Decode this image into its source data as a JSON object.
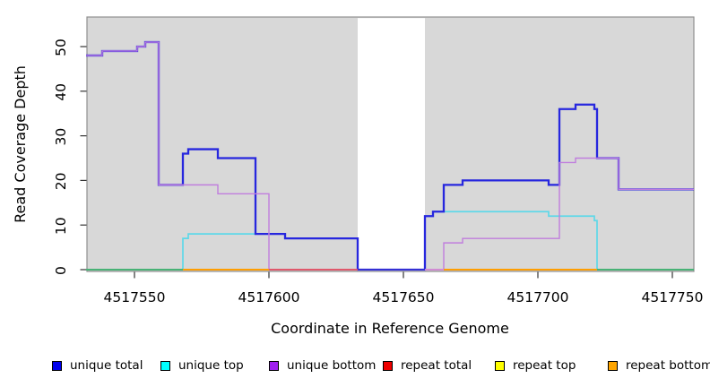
{
  "chart_data": {
    "type": "line",
    "subtype": "step-coverage-plot",
    "title": "",
    "xlabel": "Coordinate in Reference Genome",
    "ylabel": "Read Coverage Depth",
    "xlim": [
      4517532,
      4517758
    ],
    "ylim": [
      0,
      56
    ],
    "x_ticks": [
      "4517550",
      "4517600",
      "4517650",
      "4517700",
      "4517750"
    ],
    "x_tick_values": [
      4517550,
      4517600,
      4517650,
      4517700,
      4517750
    ],
    "y_ticks": [
      "0",
      "10",
      "20",
      "30",
      "40",
      "50"
    ],
    "y_tick_values": [
      0,
      10,
      20,
      30,
      40,
      50
    ],
    "grid": "off",
    "plot_background": "#d8d8d8",
    "plot_border": "#8f8f8f",
    "gap_band": {
      "from": 4517633,
      "to": 4517658,
      "fill": "#ffffff"
    },
    "series": [
      {
        "name": "repeat total",
        "line_color": "#e0506a",
        "width": 1.5,
        "steps": [
          [
            4517532,
            0
          ]
        ],
        "end": 4517758
      },
      {
        "name": "repeat top",
        "line_color": "#ffff00",
        "width": 1.5,
        "steps": [
          [
            4517532,
            0
          ]
        ],
        "end": 4517758
      },
      {
        "name": "repeat bottom",
        "line_color": "#ff9d00",
        "width": 1.8,
        "steps": [
          [
            4517532,
            0
          ]
        ],
        "end": 4517758
      },
      {
        "name": "unique top",
        "line_color": "#5ed8e8",
        "width": 1.7,
        "steps": [
          [
            4517532,
            0
          ],
          [
            4517568,
            7
          ],
          [
            4517570,
            8
          ],
          [
            4517606,
            7
          ],
          [
            4517633,
            0
          ],
          [
            4517658,
            12
          ],
          [
            4517661,
            13
          ],
          [
            4517704,
            12
          ],
          [
            4517721,
            11
          ],
          [
            4517722,
            0
          ]
        ],
        "end": 4517758
      },
      {
        "name": "unique total",
        "line_color": "#2727de",
        "width": 2.3,
        "steps": [
          [
            4517532,
            48
          ],
          [
            4517538,
            49
          ],
          [
            4517551,
            50
          ],
          [
            4517554,
            51
          ],
          [
            4517559,
            19
          ],
          [
            4517568,
            26
          ],
          [
            4517570,
            27
          ],
          [
            4517581,
            25
          ],
          [
            4517595,
            8
          ],
          [
            4517606,
            7
          ],
          [
            4517633,
            0
          ],
          [
            4517658,
            12
          ],
          [
            4517661,
            13
          ],
          [
            4517665,
            19
          ],
          [
            4517672,
            20
          ],
          [
            4517704,
            19
          ],
          [
            4517708,
            36
          ],
          [
            4517714,
            37
          ],
          [
            4517721,
            36
          ],
          [
            4517722,
            25
          ],
          [
            4517730,
            18
          ]
        ],
        "end": 4517758
      },
      {
        "name": "unique bottom",
        "line_color": "#c07edd",
        "width": 1.4,
        "steps": [
          [
            4517532,
            48
          ],
          [
            4517538,
            49
          ],
          [
            4517551,
            50
          ],
          [
            4517554,
            51
          ],
          [
            4517559,
            19
          ],
          [
            4517581,
            17
          ],
          [
            4517600,
            0
          ],
          [
            4517665,
            6
          ],
          [
            4517672,
            7
          ],
          [
            4517708,
            24
          ],
          [
            4517714,
            25
          ],
          [
            4517730,
            18
          ]
        ],
        "end": 4517758
      }
    ],
    "zero_line_segments": [
      {
        "from": 4517532,
        "to": 4517568,
        "color": "#3fae6e"
      },
      {
        "from": 4517568,
        "to": 4517600,
        "color": "#ff9d00"
      },
      {
        "from": 4517600,
        "to": 4517633,
        "color": "#e0506a"
      },
      {
        "from": 4517633,
        "to": 4517658,
        "color": "#2b2bd2"
      },
      {
        "from": 4517658,
        "to": 4517665,
        "color": "#cf8ae0"
      },
      {
        "from": 4517665,
        "to": 4517722,
        "color": "#ff9d00"
      },
      {
        "from": 4517722,
        "to": 4517758,
        "color": "#3fae6e"
      }
    ],
    "legend_position": "bottom",
    "legend": [
      {
        "label": "unique total",
        "color": "#0000ee"
      },
      {
        "label": "unique top",
        "color": "#00ffff"
      },
      {
        "label": "unique bottom",
        "color": "#a020f0"
      },
      {
        "label": "repeat total",
        "color": "#ee0000"
      },
      {
        "label": "repeat top",
        "color": "#ffff00"
      },
      {
        "label": "repeat bottom",
        "color": "#ffa500"
      }
    ]
  }
}
